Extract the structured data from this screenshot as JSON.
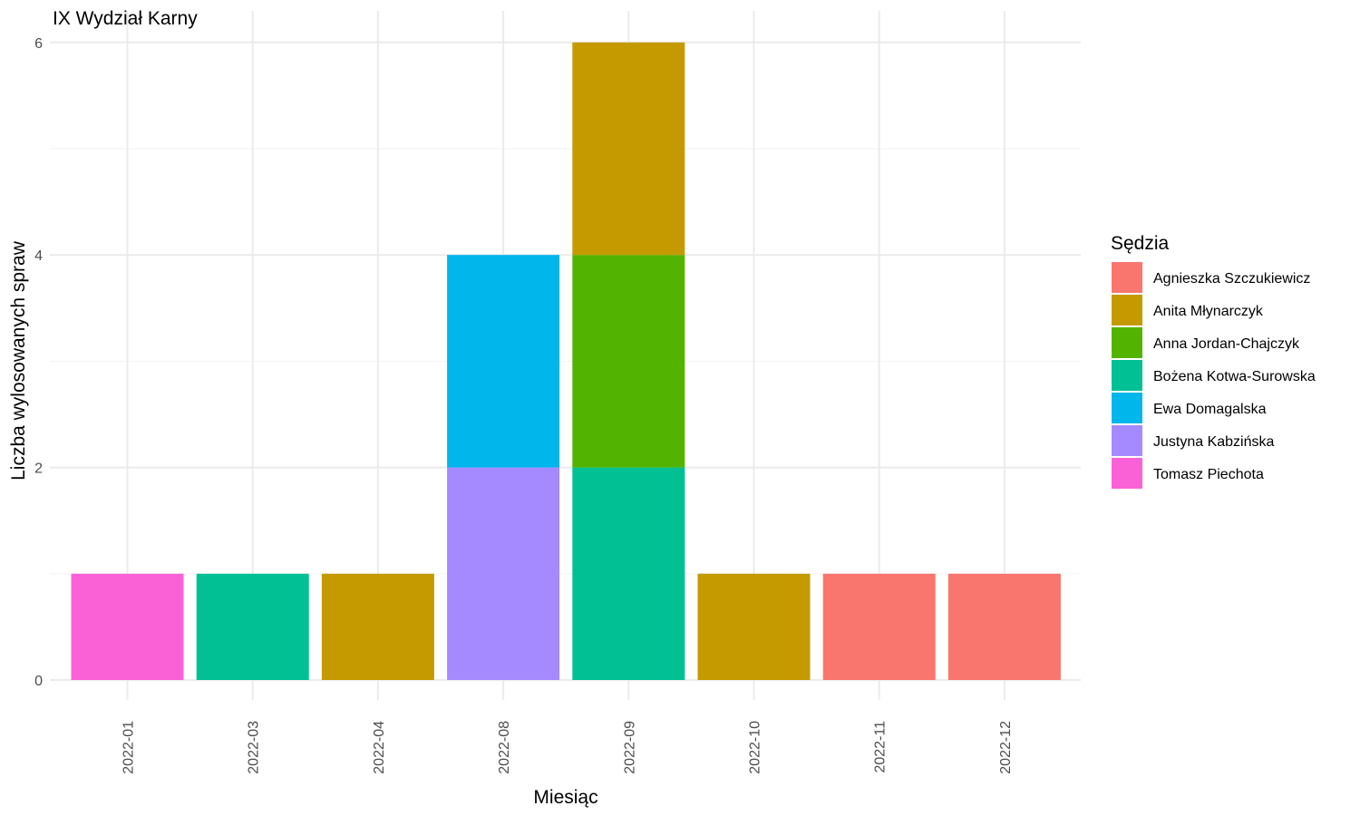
{
  "chart_data": {
    "type": "bar",
    "stacked": true,
    "title": "IX Wydział Karny",
    "xlabel": "Miesiąc",
    "ylabel": "Liczba wylosowanych spraw",
    "ylim": [
      0,
      6
    ],
    "yticks": [
      0,
      2,
      4,
      6
    ],
    "grid": true,
    "legend_title": "Sędzia",
    "legend_position": "right",
    "categories": [
      "2022-01",
      "2022-03",
      "2022-04",
      "2022-08",
      "2022-09",
      "2022-10",
      "2022-11",
      "2022-12"
    ],
    "series": [
      {
        "name": "Agnieszka Szczukiewicz",
        "color": "#F8766D",
        "values": [
          0,
          0,
          0,
          0,
          0,
          0,
          1,
          1
        ]
      },
      {
        "name": "Anita Młynarczyk",
        "color": "#C49A00",
        "values": [
          0,
          0,
          1,
          0,
          2,
          1,
          0,
          0
        ]
      },
      {
        "name": "Anna Jordan-Chajczyk",
        "color": "#53B400",
        "values": [
          0,
          0,
          0,
          0,
          2,
          0,
          0,
          0
        ]
      },
      {
        "name": "Bożena Kotwa-Surowska",
        "color": "#00C094",
        "values": [
          0,
          1,
          0,
          0,
          2,
          0,
          0,
          0
        ]
      },
      {
        "name": "Ewa Domagalska",
        "color": "#00B6EB",
        "values": [
          0,
          0,
          0,
          2,
          0,
          0,
          0,
          0
        ]
      },
      {
        "name": "Justyna Kabzińska",
        "color": "#A58AFF",
        "values": [
          0,
          0,
          0,
          2,
          0,
          0,
          0,
          0
        ]
      },
      {
        "name": "Tomasz Piechota",
        "color": "#FB61D7",
        "values": [
          1,
          0,
          0,
          0,
          0,
          0,
          0,
          0
        ]
      }
    ]
  }
}
